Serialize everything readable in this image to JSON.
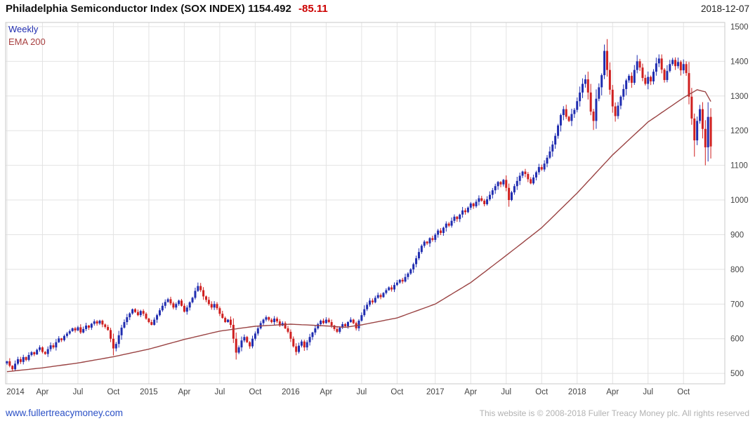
{
  "header": {
    "index_name": "Philadelphia Semiconductor Index (SOX INDEX)",
    "last_price": "1154.492",
    "change": "-85.11",
    "date": "2018-12-07"
  },
  "legend": {
    "items": [
      {
        "label": "Weekly",
        "color": "#202db0"
      },
      {
        "label": "EMA 200",
        "color": "#a84040"
      }
    ]
  },
  "footer": {
    "site_link": "www.fullertreacymoney.com",
    "copyright": "This website is © 2008-2018 Fuller Treacy Money plc. All rights reserved"
  },
  "chart_data": {
    "type": "candlestick",
    "title": "Philadelphia Semiconductor Index (SOX INDEX)",
    "timeframe": "Weekly",
    "overlay_label": "EMA 200",
    "last_close": 1154.492,
    "change": -85.11,
    "as_of_date": "2018-12-07",
    "y_axis_side": "right",
    "ylim": [
      470,
      1512
    ],
    "y_ticks": [
      500,
      600,
      700,
      800,
      900,
      1000,
      1100,
      1200,
      1300,
      1400,
      1500
    ],
    "x_ticks": [
      {
        "label": "2014",
        "week": 0
      },
      {
        "label": "Apr",
        "week": 13
      },
      {
        "label": "Jul",
        "week": 26
      },
      {
        "label": "Oct",
        "week": 39
      },
      {
        "label": "2015",
        "week": 52
      },
      {
        "label": "Apr",
        "week": 65
      },
      {
        "label": "Jul",
        "week": 78
      },
      {
        "label": "Oct",
        "week": 91
      },
      {
        "label": "2016",
        "week": 104
      },
      {
        "label": "Apr",
        "week": 117
      },
      {
        "label": "Jul",
        "week": 130
      },
      {
        "label": "Oct",
        "week": 143
      },
      {
        "label": "2017",
        "week": 157
      },
      {
        "label": "Apr",
        "week": 170
      },
      {
        "label": "Jul",
        "week": 183
      },
      {
        "label": "Oct",
        "week": 196
      },
      {
        "label": "2018",
        "week": 209
      },
      {
        "label": "Apr",
        "week": 222
      },
      {
        "label": "Jul",
        "week": 235
      },
      {
        "label": "Oct",
        "week": 248
      }
    ],
    "weekly_closes": [
      535,
      522,
      512,
      528,
      541,
      533,
      547,
      539,
      553,
      561,
      555,
      568,
      575,
      562,
      556,
      570,
      581,
      575,
      590,
      601,
      596,
      608,
      615,
      622,
      630,
      624,
      633,
      618,
      628,
      638,
      632,
      643,
      650,
      644,
      652,
      641,
      634,
      625,
      600,
      572,
      585,
      610,
      632,
      648,
      662,
      673,
      685,
      677,
      668,
      680,
      672,
      658,
      648,
      640,
      655,
      668,
      682,
      695,
      706,
      714,
      702,
      690,
      700,
      710,
      695,
      678,
      690,
      705,
      718,
      738,
      752,
      740,
      722,
      712,
      700,
      690,
      700,
      688,
      672,
      660,
      648,
      655,
      640,
      600,
      560,
      575,
      595,
      605,
      590,
      578,
      600,
      615,
      630,
      645,
      655,
      662,
      655,
      648,
      658,
      650,
      638,
      645,
      630,
      620,
      600,
      578,
      562,
      580,
      592,
      575,
      590,
      605,
      618,
      630,
      642,
      652,
      645,
      655,
      648,
      638,
      628,
      620,
      632,
      642,
      636,
      648,
      655,
      645,
      630,
      652,
      668,
      685,
      698,
      710,
      705,
      718,
      726,
      720,
      732,
      740,
      748,
      742,
      755,
      762,
      770,
      765,
      778,
      788,
      800,
      815,
      832,
      850,
      868,
      880,
      875,
      890,
      885,
      900,
      912,
      905,
      920,
      932,
      926,
      940,
      952,
      945,
      958,
      970,
      965,
      978,
      990,
      982,
      995,
      1005,
      998,
      988,
      1002,
      1015,
      1028,
      1040,
      1052,
      1045,
      1058,
      1035,
      1000,
      1022,
      1040,
      1055,
      1070,
      1082,
      1075,
      1060,
      1048,
      1065,
      1080,
      1095,
      1088,
      1105,
      1122,
      1140,
      1160,
      1185,
      1215,
      1245,
      1262,
      1240,
      1228,
      1248,
      1260,
      1285,
      1310,
      1335,
      1348,
      1310,
      1255,
      1228,
      1292,
      1325,
      1360,
      1430,
      1375,
      1318,
      1270,
      1242,
      1272,
      1298,
      1320,
      1345,
      1358,
      1338,
      1375,
      1400,
      1382,
      1352,
      1335,
      1355,
      1342,
      1370,
      1394,
      1408,
      1376,
      1346,
      1372,
      1392,
      1404,
      1386,
      1398,
      1374,
      1392,
      1366,
      1298,
      1235,
      1172,
      1228,
      1262,
      1205,
      1152,
      1239.6,
      1154.49
    ],
    "high_overrides": {
      "70": 762,
      "219": 1448,
      "220": 1464,
      "231": 1418,
      "239": 1420,
      "257": 1282
    },
    "low_overrides": {
      "39": 552,
      "84": 540,
      "106": 556,
      "215": 1202,
      "223": 1226,
      "252": 1125,
      "256": 1100
    },
    "ema200_anchors": [
      [
        0,
        505
      ],
      [
        13,
        516
      ],
      [
        26,
        530
      ],
      [
        39,
        548
      ],
      [
        52,
        570
      ],
      [
        65,
        598
      ],
      [
        78,
        622
      ],
      [
        91,
        636
      ],
      [
        104,
        642
      ],
      [
        117,
        637
      ],
      [
        124,
        633
      ],
      [
        130,
        640
      ],
      [
        143,
        660
      ],
      [
        157,
        700
      ],
      [
        170,
        762
      ],
      [
        183,
        840
      ],
      [
        196,
        920
      ],
      [
        209,
        1020
      ],
      [
        222,
        1130
      ],
      [
        235,
        1225
      ],
      [
        248,
        1295
      ],
      [
        253,
        1318
      ],
      [
        256,
        1312
      ],
      [
        258,
        1284
      ]
    ],
    "colors": {
      "up": "#202db0",
      "down": "#cf1f1f",
      "ema": "#9a4343",
      "grid": "#e3e3e3",
      "border": "#c9c9c9",
      "axis_text": "#444444"
    }
  }
}
